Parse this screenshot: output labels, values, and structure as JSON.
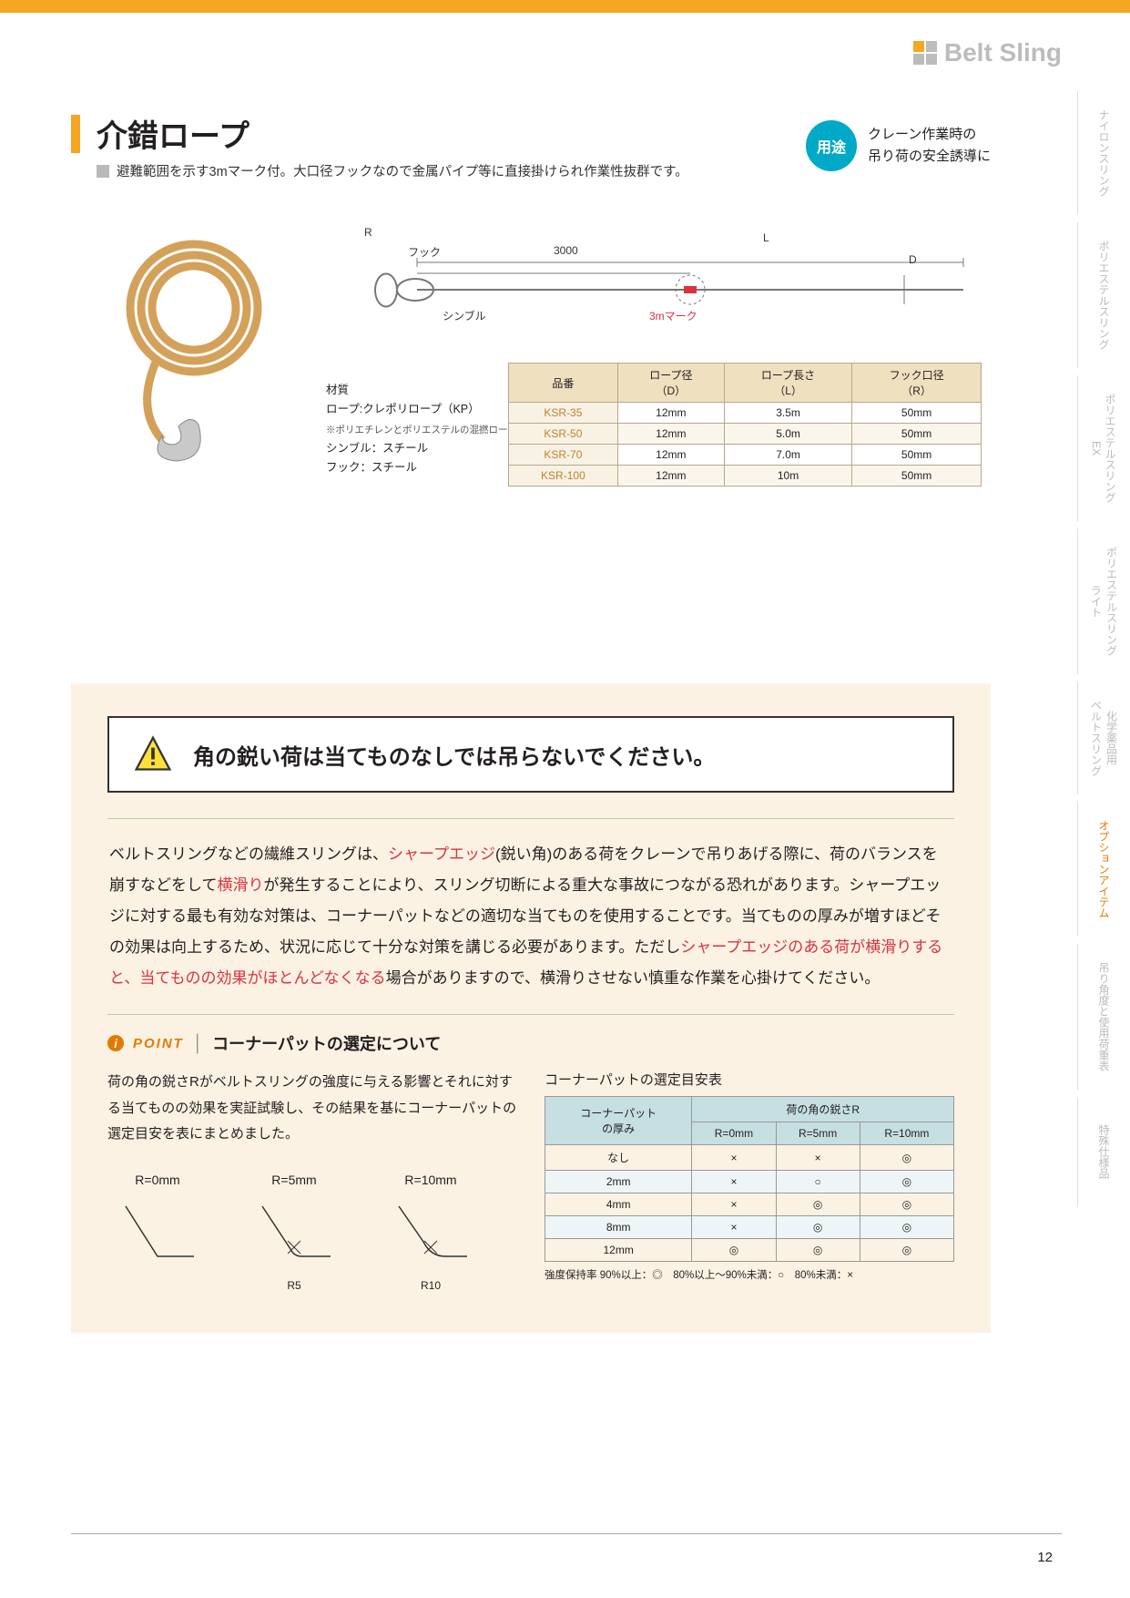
{
  "brand": "Belt Sling",
  "header": {
    "title": "介錯ロープ",
    "subtitle": "避難範囲を示す3mマーク付。大口径フックなので金属パイプ等に直接掛けられ作業性抜群です。",
    "use_badge": "用途",
    "use_text": "クレーン作業時の\n吊り荷の安全誘導に"
  },
  "schematic": {
    "hook_label": "フック",
    "thimble_label": "シンブル",
    "mark_label": "3mマーク",
    "R": "R",
    "L": "L",
    "D": "D",
    "len_3000": "3000"
  },
  "material": {
    "heading": "材質",
    "line1": "ロープ:クレポリロープ（KP）",
    "note": "※ポリエチレンとポリエステルの混撚ロープ",
    "line2": "シンブル：スチール",
    "line3": "フック：スチール"
  },
  "spec_table": {
    "headers": [
      "品番",
      "ロープ径\n（D）",
      "ロープ長さ\n（L）",
      "フック口径\n（R）"
    ],
    "rows": [
      [
        "KSR-35",
        "12mm",
        "3.5m",
        "50mm"
      ],
      [
        "KSR-50",
        "12mm",
        "5.0m",
        "50mm"
      ],
      [
        "KSR-70",
        "12mm",
        "7.0m",
        "50mm"
      ],
      [
        "KSR-100",
        "12mm",
        "10m",
        "50mm"
      ]
    ]
  },
  "warning": {
    "title": "角の鋭い荷は当てものなしでは吊らないでください。",
    "body_parts": [
      {
        "t": "ベルトスリングなどの繊維スリングは、"
      },
      {
        "t": "シャープエッジ",
        "red": true
      },
      {
        "t": "(鋭い角)のある荷をクレーンで吊りあげる際に、荷のバランスを崩すなどをして"
      },
      {
        "t": "横滑り",
        "red": true
      },
      {
        "t": "が発生することにより、スリング切断による重大な事故につながる恐れがあります。シャープエッジに対する最も有効な対策は、コーナーパットなどの適切な当てものを使用することです。当てものの厚みが増すほどその効果は向上するため、状況に応じて十分な対策を講じる必要があります。ただし"
      },
      {
        "t": "シャープエッジのある荷が横滑りすると、当てものの効果がほとんどなくなる",
        "red": true
      },
      {
        "t": "場合がありますので、横滑りさせない慎重な作業を心掛けてください。"
      }
    ]
  },
  "point": {
    "label": "POINT",
    "heading": "コーナーパットの選定について",
    "left_text": "荷の角の鋭さRがベルトスリングの強度に与える影響とそれに対する当てものの効果を実証試験し、その結果を基にコーナーパットの選定目安を表にまとめました。",
    "r_labels": [
      "R=0mm",
      "R=5mm",
      "R=10mm"
    ],
    "r_sub": [
      "",
      "R5",
      "R10"
    ]
  },
  "sel_table": {
    "caption": "コーナーパットの選定目安表",
    "col_group_label": "荷の角の鋭さR",
    "row_header": "コーナーパット\nの厚み",
    "cols": [
      "R=0mm",
      "R=5mm",
      "R=10mm"
    ],
    "rows": [
      [
        "なし",
        "×",
        "×",
        "◎"
      ],
      [
        "2mm",
        "×",
        "○",
        "◎"
      ],
      [
        "4mm",
        "×",
        "◎",
        "◎"
      ],
      [
        "8mm",
        "×",
        "◎",
        "◎"
      ],
      [
        "12mm",
        "◎",
        "◎",
        "◎"
      ]
    ],
    "legend": "強度保持率 90%以上：◎　80%以上〜90%未満：○　80%未満：×"
  },
  "side_tabs": [
    {
      "label": "ナイロンスリング"
    },
    {
      "label": "ポリエステルスリング"
    },
    {
      "label": "ポリエステルスリング\nEX"
    },
    {
      "label": "ポリエステルスリング\nライト"
    },
    {
      "label": "化学薬品用\nベルトスリング"
    },
    {
      "label": "オプションアイテム",
      "active": true
    },
    {
      "label": "吊り角度と使用荷重表"
    },
    {
      "label": "特殊仕様品"
    }
  ],
  "page_number": "12",
  "colors": {
    "accent": "#f5a623",
    "cyan": "#00a9c7",
    "red": "#d9333f",
    "cream": "#fcf2e3",
    "table_head": "#efe0bf",
    "sel_head": "#c5dfe3",
    "orange_text": "#e07b00"
  }
}
